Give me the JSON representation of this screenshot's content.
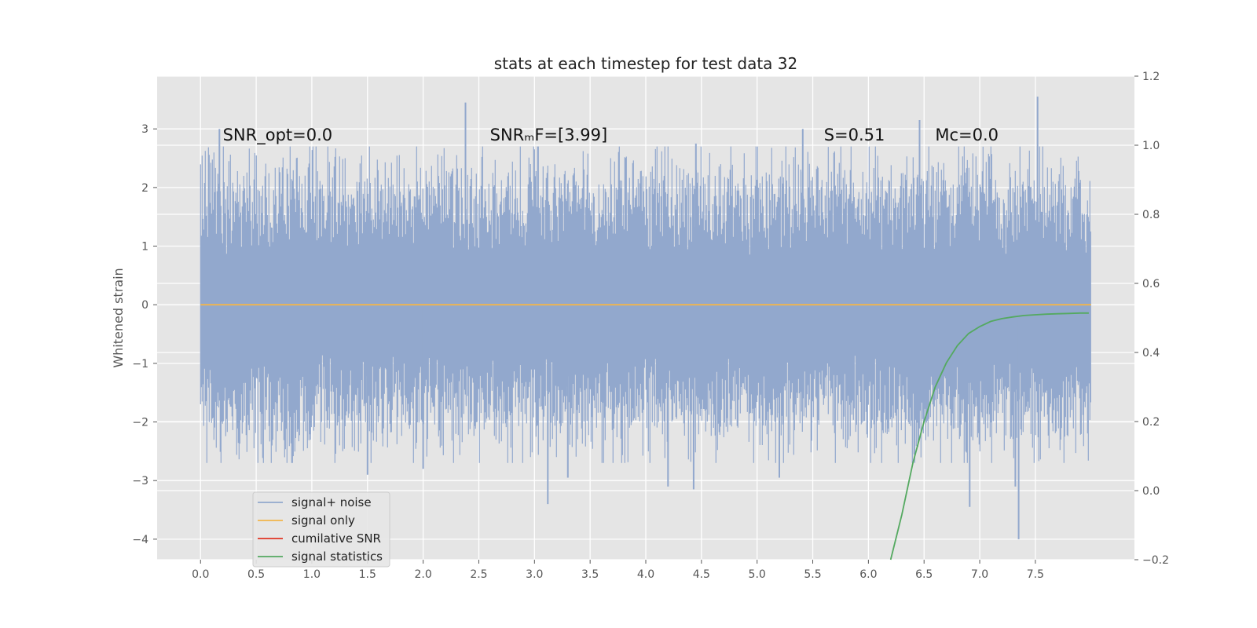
{
  "chart_data": {
    "type": "line",
    "title": "stats at each timestep for test data 32",
    "xlabel": "",
    "ylabel": "Whitened strain",
    "xlim": [
      -0.39,
      8.39
    ],
    "ylim": [
      -4.35,
      3.9
    ],
    "y2lim": [
      -0.2,
      1.2
    ],
    "x_ticks": [
      0.0,
      0.5,
      1.0,
      1.5,
      2.0,
      2.5,
      3.0,
      3.5,
      4.0,
      4.5,
      5.0,
      5.5,
      6.0,
      6.5,
      7.0,
      7.5
    ],
    "x_tick_labels": [
      "0.0",
      "0.5",
      "1.0",
      "1.5",
      "2.0",
      "2.5",
      "3.0",
      "3.5",
      "4.0",
      "4.5",
      "5.0",
      "5.5",
      "6.0",
      "6.5",
      "7.0",
      "7.5"
    ],
    "y_ticks": [
      -4,
      -3,
      -2,
      -1,
      0,
      1,
      2,
      3
    ],
    "y_tick_labels": [
      "−4",
      "−3",
      "−2",
      "−1",
      "0",
      "1",
      "2",
      "3"
    ],
    "y2_ticks": [
      -0.2,
      0.0,
      0.2,
      0.4,
      0.6,
      0.8,
      1.0,
      1.2
    ],
    "y2_tick_labels": [
      "−0.2",
      "0.0",
      "0.2",
      "0.4",
      "0.6",
      "0.8",
      "1.0",
      "1.2"
    ],
    "grid": true,
    "legend_position": "lower-left",
    "annotations": [
      {
        "text": "SNR_opt=0.0",
        "x": 0.2,
        "y": 2.8
      },
      {
        "text": "SNRₘF=[3.99]",
        "x": 2.6,
        "y": 2.8
      },
      {
        "text": "S=0.51",
        "x": 5.6,
        "y": 2.8
      },
      {
        "text": "Mᴄ=0.0",
        "x": 6.6,
        "y": 2.8
      }
    ],
    "series": [
      {
        "name": "signal+ noise",
        "color": "#92a8cd",
        "kind": "noise",
        "x_range": [
          0.0,
          8.0
        ],
        "envelope": {
          "typical_abs": 1.2,
          "max": 3.55,
          "min": -4.0
        },
        "spikes": [
          {
            "x": 2.38,
            "y": 3.45
          },
          {
            "x": 7.52,
            "y": 3.55
          },
          {
            "x": 6.46,
            "y": 3.15
          },
          {
            "x": 5.41,
            "y": 3.0
          },
          {
            "x": 4.45,
            "y": 2.75
          },
          {
            "x": 0.17,
            "y": 3.0
          },
          {
            "x": 3.12,
            "y": -3.4
          },
          {
            "x": 4.43,
            "y": -3.15
          },
          {
            "x": 4.2,
            "y": -3.1
          },
          {
            "x": 6.91,
            "y": -3.45
          },
          {
            "x": 7.35,
            "y": -4.0
          },
          {
            "x": 7.32,
            "y": -3.1
          },
          {
            "x": 5.2,
            "y": -2.95
          },
          {
            "x": 1.5,
            "y": -2.9
          },
          {
            "x": 3.3,
            "y": -2.95
          },
          {
            "x": 2.0,
            "y": -2.8
          }
        ]
      },
      {
        "name": "signal only",
        "color": "#f2b54b",
        "axis": "left",
        "x": [
          0.0,
          8.0
        ],
        "y": [
          0.0,
          0.0
        ]
      },
      {
        "name": "cumilative SNR",
        "color": "#e03524",
        "axis": "right",
        "x": [],
        "y": []
      },
      {
        "name": "signal statistics",
        "color": "#54a960",
        "axis": "right",
        "x": [
          6.2,
          6.3,
          6.4,
          6.5,
          6.6,
          6.7,
          6.8,
          6.9,
          7.0,
          7.1,
          7.2,
          7.3,
          7.4,
          7.5,
          7.6,
          7.7,
          7.8,
          7.9,
          7.98
        ],
        "y": [
          -0.2,
          -0.07,
          0.08,
          0.2,
          0.3,
          0.37,
          0.42,
          0.455,
          0.475,
          0.49,
          0.498,
          0.503,
          0.507,
          0.509,
          0.511,
          0.512,
          0.513,
          0.514,
          0.514
        ]
      }
    ]
  },
  "colors": {
    "plot_background": "#e5e5e5",
    "grid": "#ffffff",
    "legend_background": "#e5e5e5",
    "legend_border": "#cccccc"
  }
}
